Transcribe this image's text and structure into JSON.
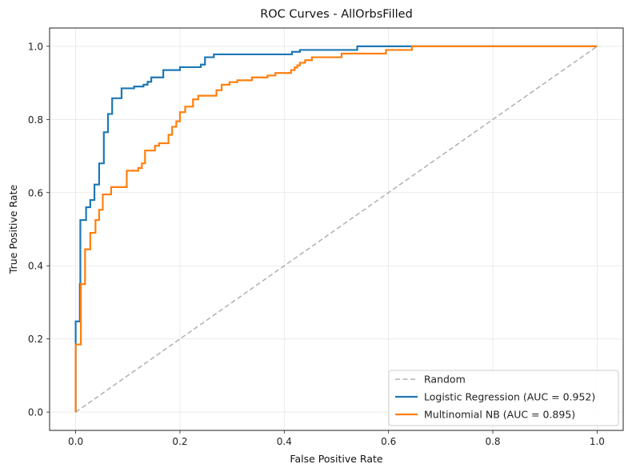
{
  "chart_data": {
    "type": "line",
    "title": "ROC Curves - AllOrbsFilled",
    "xlabel": "False Positive Rate",
    "ylabel": "True Positive Rate",
    "xlim": [
      -0.05,
      1.05
    ],
    "ylim": [
      -0.05,
      1.05
    ],
    "xticks": [
      "0.0",
      "0.2",
      "0.4",
      "0.6",
      "0.8",
      "1.0"
    ],
    "yticks": [
      "0.0",
      "0.2",
      "0.4",
      "0.6",
      "0.8",
      "1.0"
    ],
    "grid": true,
    "legend_position": "bottom-right",
    "series": [
      {
        "name": "Random",
        "color": "#b0b0b0",
        "style": "dashed",
        "points": [
          [
            0,
            0
          ],
          [
            1,
            1
          ]
        ]
      },
      {
        "name": "Logistic Regression (AUC = 0.952)",
        "color": "#1f77b4",
        "style": "step",
        "points": [
          [
            0,
            0
          ],
          [
            0,
            0.248
          ],
          [
            0.008,
            0.248
          ],
          [
            0.008,
            0.35
          ],
          [
            0.009,
            0.35
          ],
          [
            0.009,
            0.525
          ],
          [
            0.02,
            0.525
          ],
          [
            0.02,
            0.56
          ],
          [
            0.028,
            0.56
          ],
          [
            0.028,
            0.58
          ],
          [
            0.036,
            0.58
          ],
          [
            0.036,
            0.622
          ],
          [
            0.045,
            0.622
          ],
          [
            0.045,
            0.68
          ],
          [
            0.054,
            0.68
          ],
          [
            0.054,
            0.765
          ],
          [
            0.062,
            0.765
          ],
          [
            0.062,
            0.815
          ],
          [
            0.07,
            0.815
          ],
          [
            0.07,
            0.858
          ],
          [
            0.088,
            0.858
          ],
          [
            0.088,
            0.885
          ],
          [
            0.112,
            0.885
          ],
          [
            0.112,
            0.89
          ],
          [
            0.13,
            0.89
          ],
          [
            0.13,
            0.895
          ],
          [
            0.138,
            0.895
          ],
          [
            0.138,
            0.903
          ],
          [
            0.145,
            0.903
          ],
          [
            0.145,
            0.915
          ],
          [
            0.168,
            0.915
          ],
          [
            0.168,
            0.935
          ],
          [
            0.2,
            0.935
          ],
          [
            0.2,
            0.943
          ],
          [
            0.24,
            0.943
          ],
          [
            0.24,
            0.95
          ],
          [
            0.248,
            0.95
          ],
          [
            0.248,
            0.97
          ],
          [
            0.265,
            0.97
          ],
          [
            0.265,
            0.978
          ],
          [
            0.415,
            0.978
          ],
          [
            0.415,
            0.985
          ],
          [
            0.43,
            0.985
          ],
          [
            0.43,
            0.99
          ],
          [
            0.54,
            0.99
          ],
          [
            0.54,
            1.0
          ],
          [
            1.0,
            1.0
          ]
        ]
      },
      {
        "name": "Multinomial NB (AUC = 0.895)",
        "color": "#ff7f0e",
        "style": "step",
        "points": [
          [
            0,
            0
          ],
          [
            0,
            0.185
          ],
          [
            0.01,
            0.185
          ],
          [
            0.01,
            0.35
          ],
          [
            0.018,
            0.35
          ],
          [
            0.018,
            0.445
          ],
          [
            0.028,
            0.445
          ],
          [
            0.028,
            0.49
          ],
          [
            0.038,
            0.49
          ],
          [
            0.038,
            0.525
          ],
          [
            0.045,
            0.525
          ],
          [
            0.045,
            0.553
          ],
          [
            0.052,
            0.553
          ],
          [
            0.052,
            0.595
          ],
          [
            0.068,
            0.595
          ],
          [
            0.068,
            0.615
          ],
          [
            0.098,
            0.615
          ],
          [
            0.098,
            0.66
          ],
          [
            0.12,
            0.66
          ],
          [
            0.12,
            0.667
          ],
          [
            0.127,
            0.667
          ],
          [
            0.127,
            0.68
          ],
          [
            0.133,
            0.68
          ],
          [
            0.133,
            0.715
          ],
          [
            0.152,
            0.715
          ],
          [
            0.152,
            0.728
          ],
          [
            0.16,
            0.728
          ],
          [
            0.16,
            0.735
          ],
          [
            0.178,
            0.735
          ],
          [
            0.178,
            0.758
          ],
          [
            0.185,
            0.758
          ],
          [
            0.185,
            0.78
          ],
          [
            0.193,
            0.78
          ],
          [
            0.193,
            0.795
          ],
          [
            0.2,
            0.795
          ],
          [
            0.2,
            0.82
          ],
          [
            0.21,
            0.82
          ],
          [
            0.21,
            0.835
          ],
          [
            0.225,
            0.835
          ],
          [
            0.225,
            0.855
          ],
          [
            0.235,
            0.855
          ],
          [
            0.235,
            0.865
          ],
          [
            0.27,
            0.865
          ],
          [
            0.27,
            0.88
          ],
          [
            0.28,
            0.88
          ],
          [
            0.28,
            0.895
          ],
          [
            0.295,
            0.895
          ],
          [
            0.295,
            0.902
          ],
          [
            0.31,
            0.902
          ],
          [
            0.31,
            0.907
          ],
          [
            0.338,
            0.907
          ],
          [
            0.338,
            0.915
          ],
          [
            0.368,
            0.915
          ],
          [
            0.368,
            0.92
          ],
          [
            0.383,
            0.92
          ],
          [
            0.383,
            0.927
          ],
          [
            0.413,
            0.927
          ],
          [
            0.413,
            0.935
          ],
          [
            0.42,
            0.935
          ],
          [
            0.42,
            0.942
          ],
          [
            0.425,
            0.942
          ],
          [
            0.425,
            0.948
          ],
          [
            0.43,
            0.948
          ],
          [
            0.43,
            0.955
          ],
          [
            0.44,
            0.955
          ],
          [
            0.44,
            0.962
          ],
          [
            0.453,
            0.962
          ],
          [
            0.453,
            0.97
          ],
          [
            0.51,
            0.97
          ],
          [
            0.51,
            0.98
          ],
          [
            0.595,
            0.98
          ],
          [
            0.595,
            0.99
          ],
          [
            0.645,
            0.99
          ],
          [
            0.645,
            1.0
          ],
          [
            1.0,
            1.0
          ]
        ]
      }
    ]
  }
}
